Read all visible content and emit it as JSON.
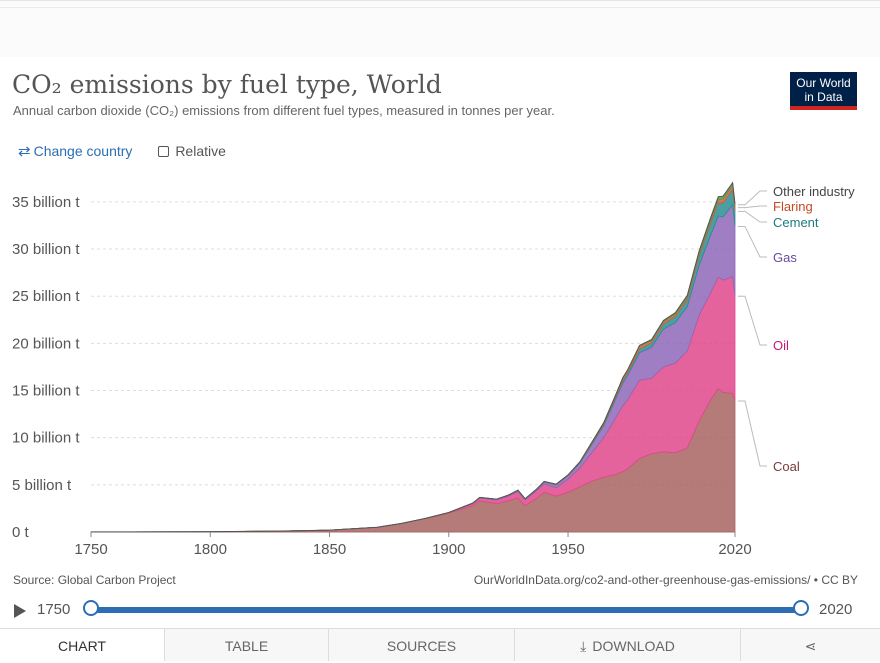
{
  "header": {
    "title": "CO₂ emissions by fuel type, World",
    "subtitle": "Annual carbon dioxide (CO₂) emissions from different fuel types, measured in tonnes per year.",
    "logo_line1": "Our World",
    "logo_line2": "in Data"
  },
  "controls": {
    "change_country": "Change country",
    "relative": "Relative"
  },
  "footer": {
    "source": "Source: Global Carbon Project",
    "url": "OurWorldInData.org/co2-and-other-greenhouse-gas-emissions/ • CC BY"
  },
  "timeline": {
    "start": "1750",
    "end": "2020"
  },
  "tabs": {
    "chart": "CHART",
    "table": "TABLE",
    "sources": "SOURCES",
    "download": "DOWNLOAD"
  },
  "icons": {
    "play": "play-icon",
    "swap": "swap-arrows-icon",
    "download": "download-icon",
    "share": "share-icon"
  },
  "chart_data": {
    "type": "area",
    "stacked": true,
    "xlim": [
      1750,
      2020
    ],
    "ylim": [
      0,
      37
    ],
    "yticks": [
      0,
      5,
      10,
      15,
      20,
      25,
      30,
      35
    ],
    "ytick_labels": [
      "0 t",
      "5 billion t",
      "10 billion t",
      "15 billion t",
      "20 billion t",
      "25 billion t",
      "30 billion t",
      "35 billion t"
    ],
    "xticks": [
      1750,
      1800,
      1850,
      1900,
      1950,
      2020
    ],
    "grid": "horizontal dashed",
    "legend_placement": "right-inline",
    "x": [
      1750,
      1800,
      1830,
      1850,
      1870,
      1880,
      1890,
      1900,
      1910,
      1913,
      1920,
      1925,
      1929,
      1932,
      1937,
      1940,
      1945,
      1950,
      1955,
      1960,
      1965,
      1970,
      1973,
      1975,
      1980,
      1985,
      1990,
      1995,
      2000,
      2005,
      2010,
      2013,
      2015,
      2019,
      2020
    ],
    "series": [
      {
        "name": "Coal",
        "color": "#a86462",
        "values": [
          0.01,
          0.03,
          0.1,
          0.2,
          0.5,
          0.9,
          1.4,
          2.0,
          2.8,
          3.3,
          3.0,
          3.3,
          3.6,
          2.8,
          3.6,
          4.2,
          3.8,
          4.2,
          4.8,
          5.4,
          5.8,
          6.1,
          6.4,
          6.7,
          7.8,
          8.3,
          8.5,
          8.4,
          8.9,
          11.8,
          14.1,
          15.2,
          14.8,
          14.7,
          14.0
        ]
      },
      {
        "name": "Oil",
        "color": "#e0488b",
        "values": [
          0,
          0,
          0,
          0,
          0,
          0,
          0.02,
          0.05,
          0.2,
          0.3,
          0.4,
          0.5,
          0.7,
          0.6,
          0.8,
          0.9,
          0.9,
          1.4,
          2.0,
          3.0,
          4.2,
          6.0,
          7.0,
          7.3,
          8.3,
          8.0,
          9.0,
          9.5,
          10.3,
          11.2,
          11.4,
          11.8,
          11.9,
          12.4,
          11.1
        ]
      },
      {
        "name": "Gas",
        "color": "#8e67b8",
        "values": [
          0,
          0,
          0,
          0,
          0,
          0,
          0.01,
          0.02,
          0.05,
          0.06,
          0.07,
          0.09,
          0.1,
          0.1,
          0.15,
          0.2,
          0.3,
          0.35,
          0.5,
          0.9,
          1.3,
          2.0,
          2.4,
          2.6,
          2.9,
          3.3,
          4.0,
          4.3,
          4.7,
          5.3,
          6.1,
          6.5,
          6.7,
          7.6,
          7.4
        ]
      },
      {
        "name": "Cement",
        "color": "#2c8d92",
        "values": [
          0,
          0,
          0,
          0,
          0,
          0,
          0,
          0,
          0.01,
          0.01,
          0.01,
          0.02,
          0.03,
          0.02,
          0.03,
          0.04,
          0.04,
          0.05,
          0.08,
          0.12,
          0.17,
          0.25,
          0.28,
          0.3,
          0.4,
          0.45,
          0.55,
          0.65,
          0.75,
          1.0,
          1.3,
          1.4,
          1.5,
          1.6,
          1.6
        ]
      },
      {
        "name": "Flaring",
        "color": "#d35e3a",
        "values": [
          0,
          0,
          0,
          0,
          0,
          0,
          0,
          0,
          0,
          0,
          0,
          0,
          0.01,
          0.01,
          0.01,
          0.02,
          0.03,
          0.05,
          0.07,
          0.1,
          0.14,
          0.2,
          0.25,
          0.25,
          0.3,
          0.25,
          0.25,
          0.25,
          0.25,
          0.3,
          0.3,
          0.35,
          0.4,
          0.43,
          0.4
        ]
      },
      {
        "name": "Other industry",
        "color": "#4c9e48",
        "values": [
          0,
          0,
          0,
          0,
          0,
          0,
          0,
          0,
          0,
          0,
          0,
          0,
          0,
          0,
          0,
          0,
          0,
          0,
          0,
          0,
          0,
          0,
          0.05,
          0.05,
          0.08,
          0.1,
          0.12,
          0.15,
          0.18,
          0.22,
          0.27,
          0.29,
          0.3,
          0.3,
          0.3
        ]
      }
    ]
  }
}
